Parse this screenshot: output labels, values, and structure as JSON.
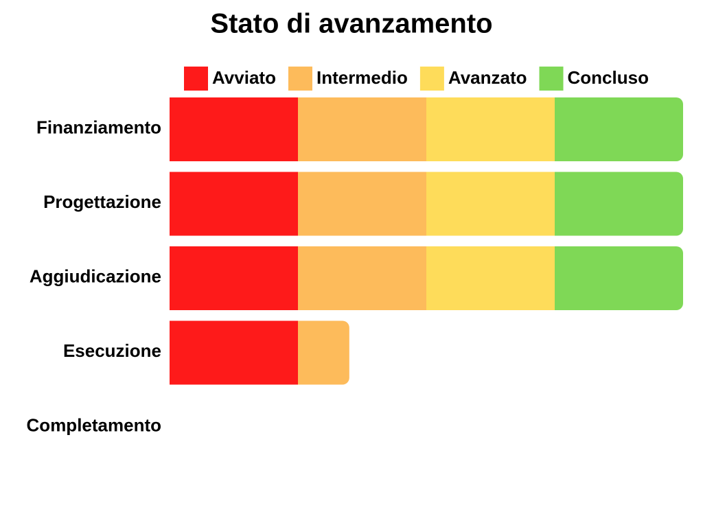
{
  "chart_data": {
    "type": "stacked-bar-horizontal",
    "title": "Stato di avanzamento",
    "categories": [
      "Finanziamento",
      "Progettazione",
      "Aggiudicazione",
      "Esecuzione",
      "Completamento"
    ],
    "series": [
      {
        "name": "Avviato",
        "color": "#fe1a1a",
        "values": [
          25,
          25,
          25,
          25,
          0
        ]
      },
      {
        "name": "Intermedio",
        "color": "#fdbb5b",
        "values": [
          25,
          25,
          25,
          10,
          0
        ]
      },
      {
        "name": "Avanzato",
        "color": "#fedc5a",
        "values": [
          25,
          25,
          25,
          0,
          0
        ]
      },
      {
        "name": "Concluso",
        "color": "#7fd856",
        "values": [
          25,
          25,
          25,
          0,
          0
        ]
      }
    ]
  }
}
